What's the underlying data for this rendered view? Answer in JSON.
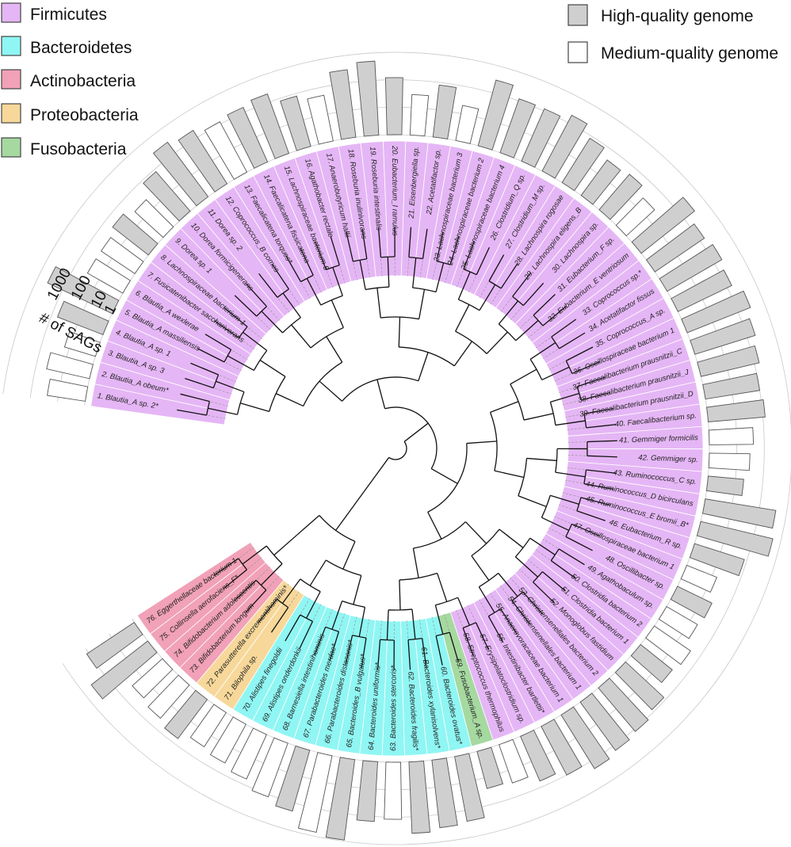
{
  "chart_data": {
    "type": "circular-phylogenetic-tree-with-bars",
    "axis_title": "# of SAGs",
    "axis_ticks": [
      "1",
      "10",
      "100",
      "1000"
    ],
    "axis_scale": "log10",
    "legend": {
      "phyla": [
        {
          "label": "Firmicutes",
          "color": "#e5b6f5"
        },
        {
          "label": "Bacteroidetes",
          "color": "#8ff6f3"
        },
        {
          "label": "Actinobacteria",
          "color": "#f1a1b8"
        },
        {
          "label": "Proteobacteria",
          "color": "#f7d89a"
        },
        {
          "label": "Fusobacteria",
          "color": "#a6d9a0"
        }
      ],
      "quality": [
        {
          "label": "High-quality genome",
          "color": "#cfcfcf"
        },
        {
          "label": "Medium-quality genome",
          "color": "#ffffff"
        }
      ]
    },
    "leaves": [
      {
        "label": "1. Blautia_A sp. 2*",
        "phylum": "Firmicutes",
        "quality": "medium",
        "sags": 25
      },
      {
        "label": "2. Blautia_A obeum*",
        "phylum": "Firmicutes",
        "quality": "medium",
        "sags": 40
      },
      {
        "label": "3. Blautia_A sp. 3",
        "phylum": "Firmicutes",
        "quality": "medium",
        "sags": 15
      },
      {
        "label": "4. Blautia_A sp. 1",
        "phylum": "Firmicutes",
        "quality": "high",
        "sags": 60
      },
      {
        "label": "5. Blautia_A massiliensis",
        "phylum": "Firmicutes",
        "quality": "high",
        "sags": 400
      },
      {
        "label": "6. Blautia_A wexlerae",
        "phylum": "Firmicutes",
        "quality": "medium",
        "sags": 30
      },
      {
        "label": "7. Fusicatenibacter saccharivorans",
        "phylum": "Firmicutes",
        "quality": "medium",
        "sags": 30
      },
      {
        "label": "8. Lachnospiraceae bacterium 1",
        "phylum": "Firmicutes",
        "quality": "high",
        "sags": 45
      },
      {
        "label": "9. Dorea sp. 1",
        "phylum": "Firmicutes",
        "quality": "medium",
        "sags": 25
      },
      {
        "label": "10. Dorea formicigenerans",
        "phylum": "Firmicutes",
        "quality": "high",
        "sags": 80
      },
      {
        "label": "11. Dorea sp. 2",
        "phylum": "Firmicutes",
        "quality": "high",
        "sags": 300
      },
      {
        "label": "12. Coprococcus_B comes",
        "phylum": "Firmicutes",
        "quality": "high",
        "sags": 200
      },
      {
        "label": "13. Faecalicatena torques*",
        "phylum": "Firmicutes",
        "quality": "medium",
        "sags": 120
      },
      {
        "label": "14. Faecalicatena fissicatena",
        "phylum": "Firmicutes",
        "quality": "high",
        "sags": 150
      },
      {
        "label": "15. Lachnospiraceae bacterium 5",
        "phylum": "Firmicutes",
        "quality": "high",
        "sags": 200
      },
      {
        "label": "16. Agathobacter rectale",
        "phylum": "Firmicutes",
        "quality": "high",
        "sags": 80
      },
      {
        "label": "17. Anaerobutyricum hallii",
        "phylum": "Firmicutes",
        "quality": "medium",
        "sags": 50
      },
      {
        "label": "18. Roseburia inulinivorans",
        "phylum": "Firmicutes",
        "quality": "high",
        "sags": 300
      },
      {
        "label": "19. Roseburia intestinalis",
        "phylum": "Firmicutes",
        "quality": "high",
        "sags": 500
      },
      {
        "label": "20. Eubacterium_I ramulus",
        "phylum": "Firmicutes",
        "quality": "high",
        "sags": 120
      },
      {
        "label": "21. Eisenbergiella sp.",
        "phylum": "Firmicutes",
        "quality": "medium",
        "sags": 30
      },
      {
        "label": "22. Acetatifactor sp.",
        "phylum": "Firmicutes",
        "quality": "high",
        "sags": 80
      },
      {
        "label": "23. Lachnospiraceae bacterium 3",
        "phylum": "Firmicutes",
        "quality": "medium",
        "sags": 20
      },
      {
        "label": "24. Lachnospiraceae bacterium 2",
        "phylum": "Firmicutes",
        "quality": "high",
        "sags": 300
      },
      {
        "label": "25. Lachnospiraceae bacterium 4",
        "phylum": "Firmicutes",
        "quality": "high",
        "sags": 120
      },
      {
        "label": "26. Clostridium_Q sp.",
        "phylum": "Firmicutes",
        "quality": "high",
        "sags": 120
      },
      {
        "label": "27. Clostridium_M sp.",
        "phylum": "Firmicutes",
        "quality": "high",
        "sags": 200
      },
      {
        "label": "28. Lachnospira rogosae",
        "phylum": "Firmicutes",
        "quality": "high",
        "sags": 80
      },
      {
        "label": "29. Lachnospira eligens_B",
        "phylum": "Firmicutes",
        "quality": "high",
        "sags": 40
      },
      {
        "label": "30. Lachnospira sp.",
        "phylum": "Firmicutes",
        "quality": "high",
        "sags": 50
      },
      {
        "label": "31. Eubacterium_F sp.",
        "phylum": "Firmicutes",
        "quality": "medium",
        "sags": 25
      },
      {
        "label": "32. Eubacterium_E ventriosum",
        "phylum": "Firmicutes",
        "quality": "high",
        "sags": 300
      },
      {
        "label": "33. Coprococcus sp.*",
        "phylum": "Firmicutes",
        "quality": "high",
        "sags": 150
      },
      {
        "label": "34. Acetatifactor fissus",
        "phylum": "Firmicutes",
        "quality": "high",
        "sags": 200
      },
      {
        "label": "35. Coprococcus_A sp.",
        "phylum": "Firmicutes",
        "quality": "high",
        "sags": 150
      },
      {
        "label": "36. Oscillospiraceae bacterium 1",
        "phylum": "Firmicutes",
        "quality": "high",
        "sags": 300
      },
      {
        "label": "37. Faecalibacterium prausnitzii_C",
        "phylum": "Firmicutes",
        "quality": "high",
        "sags": 200
      },
      {
        "label": "38. Faecalibacterium prausnitzii_J",
        "phylum": "Firmicutes",
        "quality": "high",
        "sags": 150
      },
      {
        "label": "39. Faecalibacterium prausnitzii_D",
        "phylum": "Firmicutes",
        "quality": "high",
        "sags": 100
      },
      {
        "label": "40. Faecalibacterium sp.",
        "phylum": "Firmicutes",
        "quality": "high",
        "sags": 120
      },
      {
        "label": "41. Gemmiger formicilis",
        "phylum": "Firmicutes",
        "quality": "medium",
        "sags": 40
      },
      {
        "label": "42. Gemmiger sp.",
        "phylum": "Firmicutes",
        "quality": "medium",
        "sags": 30
      },
      {
        "label": "43. Ruminococcus_C sp.",
        "phylum": "Firmicutes",
        "quality": "high",
        "sags": 20
      },
      {
        "label": "44. Ruminococcus_D bicirculans",
        "phylum": "Firmicutes",
        "quality": "high",
        "sags": 400
      },
      {
        "label": "45. Ruminococcus_E bromii_B*",
        "phylum": "Firmicutes",
        "quality": "high",
        "sags": 500
      },
      {
        "label": "46. Eubacterium_R sp.",
        "phylum": "Firmicutes",
        "quality": "high",
        "sags": 80
      },
      {
        "label": "47. Oscillospiraceae bacterium 1",
        "phylum": "Firmicutes",
        "quality": "medium",
        "sags": 15
      },
      {
        "label": "48. Oscillibacter sp.",
        "phylum": "Firmicutes",
        "quality": "high",
        "sags": 25
      },
      {
        "label": "49. Agathobaculum sp.",
        "phylum": "Firmicutes",
        "quality": "medium",
        "sags": 20
      },
      {
        "label": "50. Clostridia bacterium 2",
        "phylum": "Firmicutes",
        "quality": "medium",
        "sags": 40
      },
      {
        "label": "51. Clostridia bacterium 1",
        "phylum": "Firmicutes",
        "quality": "high",
        "sags": 30
      },
      {
        "label": "52. Monoglobus fastidium",
        "phylum": "Firmicutes",
        "quality": "high",
        "sags": 80
      },
      {
        "label": "53. Christensenellales bacterium 2",
        "phylum": "Firmicutes",
        "quality": "high",
        "sags": 120
      },
      {
        "label": "54. Christensenellales bacterium 1",
        "phylum": "Firmicutes",
        "quality": "high",
        "sags": 150
      },
      {
        "label": "55. Anaerovoracaceae bacterium 1",
        "phylum": "Firmicutes",
        "quality": "high",
        "sags": 200
      },
      {
        "label": "56. Intestinibacter bartlettii*",
        "phylum": "Firmicutes",
        "quality": "high",
        "sags": 100
      },
      {
        "label": "57. Erysipelatoclostridium sp.",
        "phylum": "Firmicutes",
        "quality": "high",
        "sags": 60
      },
      {
        "label": "58. Streptococcus thermophilus",
        "phylum": "Firmicutes",
        "quality": "medium",
        "sags": 30
      },
      {
        "label": "59. Fusobacterium_A sp.",
        "phylum": "Fusobacteria",
        "quality": "high",
        "sags": 25
      },
      {
        "label": "60. Bacteroides ovatus*",
        "phylum": "Bacteroidetes",
        "quality": "high",
        "sags": 250
      },
      {
        "label": "61. Bacteroides xylanisolvens*",
        "phylum": "Bacteroidetes",
        "quality": "high",
        "sags": 300
      },
      {
        "label": "62. Bacteroides fragilis*",
        "phylum": "Bacteroidetes",
        "quality": "high",
        "sags": 400
      },
      {
        "label": "63. Bacteroides stercoris*",
        "phylum": "Bacteroidetes",
        "quality": "medium",
        "sags": 120
      },
      {
        "label": "64. Bacteroides uniformis*",
        "phylum": "Bacteroidetes",
        "quality": "high",
        "sags": 150
      },
      {
        "label": "65. Bacteroides_B vulgatus*",
        "phylum": "Bacteroidetes",
        "quality": "high",
        "sags": 900
      },
      {
        "label": "66. Parabacteroides distasonis*",
        "phylum": "Bacteroidetes",
        "quality": "medium",
        "sags": 700
      },
      {
        "label": "67. Parabacteroides merdae*",
        "phylum": "Bacteroidetes",
        "quality": "high",
        "sags": 200
      },
      {
        "label": "68. Barnesiella intestinihominis",
        "phylum": "Bacteroidetes",
        "quality": "medium",
        "sags": 120
      },
      {
        "label": "69. Alistipes onderdonkii",
        "phylum": "Bacteroidetes",
        "quality": "medium",
        "sags": 60
      },
      {
        "label": "70. Alistipes finegoldii",
        "phylum": "Bacteroidetes",
        "quality": "medium",
        "sags": 40
      },
      {
        "label": "71. Bilophila sp.",
        "phylum": "Proteobacteria",
        "quality": "medium",
        "sags": 30
      },
      {
        "label": "72. Parasutterella excrementihominis*",
        "phylum": "Proteobacteria",
        "quality": "high",
        "sags": 60
      },
      {
        "label": "73. Bifidobacterium longum",
        "phylum": "Actinobacteria",
        "quality": "medium",
        "sags": 40
      },
      {
        "label": "74. Bifidobacterium adolescentis",
        "phylum": "Actinobacteria",
        "quality": "medium",
        "sags": 30
      },
      {
        "label": "75. Collinsella aerofaciens_F*",
        "phylum": "Actinobacteria",
        "quality": "high",
        "sags": 400
      },
      {
        "label": "76. Eggerthellaceae bacterium 1",
        "phylum": "Actinobacteria",
        "quality": "high",
        "sags": 120
      }
    ]
  }
}
